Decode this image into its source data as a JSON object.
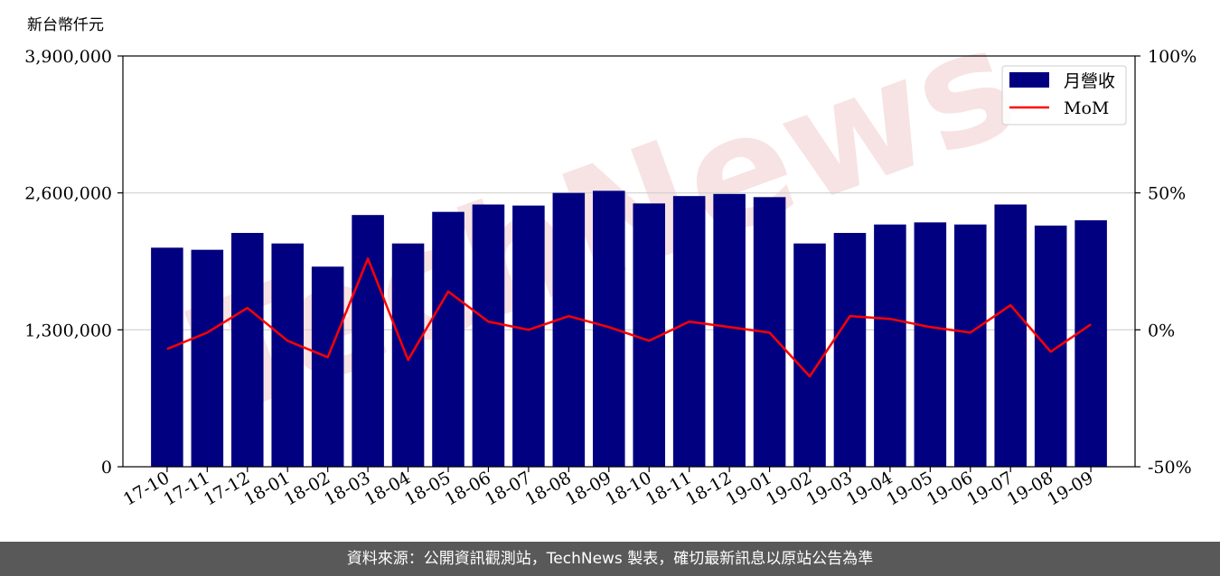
{
  "chart_data": {
    "type": "bar",
    "ylabel": "新台幣仟元",
    "categories": [
      "17-10",
      "17-11",
      "17-12",
      "18-01",
      "18-02",
      "18-03",
      "18-04",
      "18-05",
      "18-06",
      "18-07",
      "18-08",
      "18-09",
      "18-10",
      "18-11",
      "18-12",
      "19-01",
      "19-02",
      "19-03",
      "19-04",
      "19-05",
      "19-06",
      "19-07",
      "19-08",
      "19-09"
    ],
    "series": [
      {
        "name": "月營收",
        "axis": "left",
        "color": "#000080",
        "values": [
          2080000,
          2060000,
          2220000,
          2120000,
          1900000,
          2390000,
          2120000,
          2420000,
          2490000,
          2480000,
          2600000,
          2620000,
          2500000,
          2570000,
          2590000,
          2560000,
          2120000,
          2220000,
          2300000,
          2320000,
          2300000,
          2490000,
          2290000,
          2340000
        ]
      },
      {
        "name": "MoM",
        "axis": "right",
        "type": "line",
        "color": "#ff0000",
        "values": [
          -7,
          -1,
          8,
          -4,
          -10,
          26,
          -11,
          14,
          3,
          0,
          5,
          1,
          -4,
          3,
          1,
          -1,
          -17,
          5,
          4,
          1,
          -1,
          9,
          -8,
          2
        ]
      }
    ],
    "y_left": {
      "min": 0,
      "max": 3900000,
      "ticks": [
        0,
        1300000,
        2600000,
        3900000
      ],
      "tick_labels": [
        "0",
        "1,300,000",
        "2,600,000",
        "3,900,000"
      ]
    },
    "y_right": {
      "min": -50,
      "max": 100,
      "ticks": [
        -50,
        0,
        50,
        100
      ],
      "tick_labels": [
        "-50%",
        "0%",
        "50%",
        "100%"
      ]
    },
    "grid": "horizontal",
    "legend": {
      "position": "top-right",
      "entries": [
        "月營收",
        "MoM"
      ]
    }
  },
  "watermark": "TechNews",
  "footer": {
    "text": "資料來源：公開資訊觀測站，TechNews 製表，確切最新訊息以原站公告為準"
  }
}
